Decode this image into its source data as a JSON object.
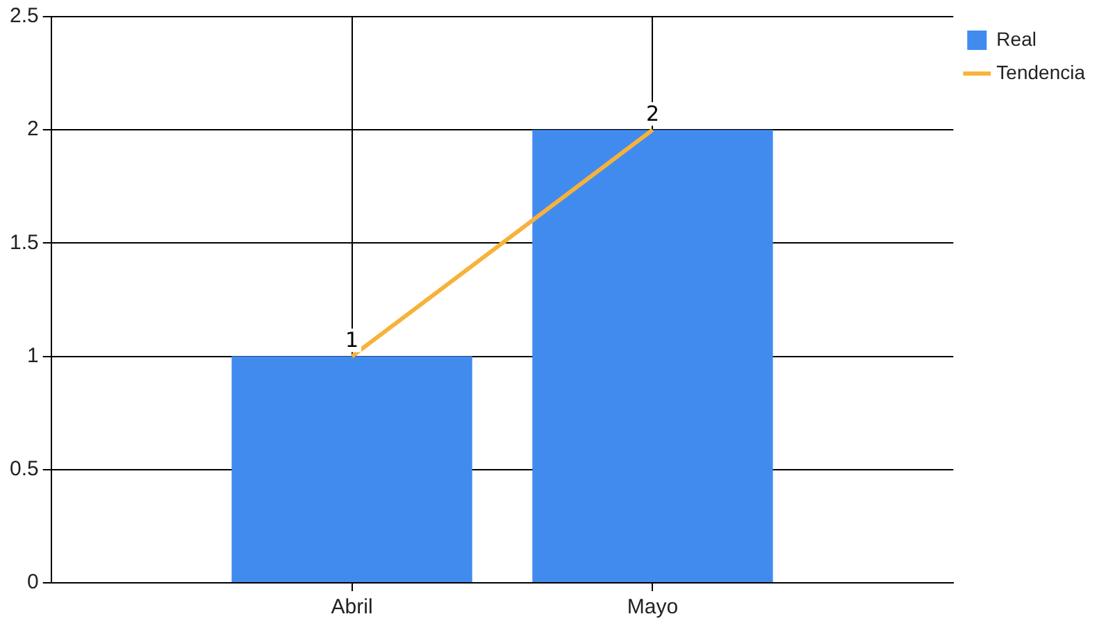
{
  "chart_data": {
    "type": "bar",
    "categories": [
      "Abril",
      "Mayo"
    ],
    "series": [
      {
        "name": "Real",
        "color": "#418bef",
        "values": [
          1,
          2
        ],
        "value_labels": [
          "1",
          "2"
        ]
      },
      {
        "name": "Tendencia",
        "type": "line",
        "color": "#f7b23b",
        "values": [
          1,
          2
        ]
      }
    ],
    "ylim": [
      0,
      2.5
    ],
    "yticks": [
      0,
      0.5,
      1,
      1.5,
      2,
      2.5
    ],
    "grid": true,
    "legend": "top right",
    "marker": "none"
  }
}
